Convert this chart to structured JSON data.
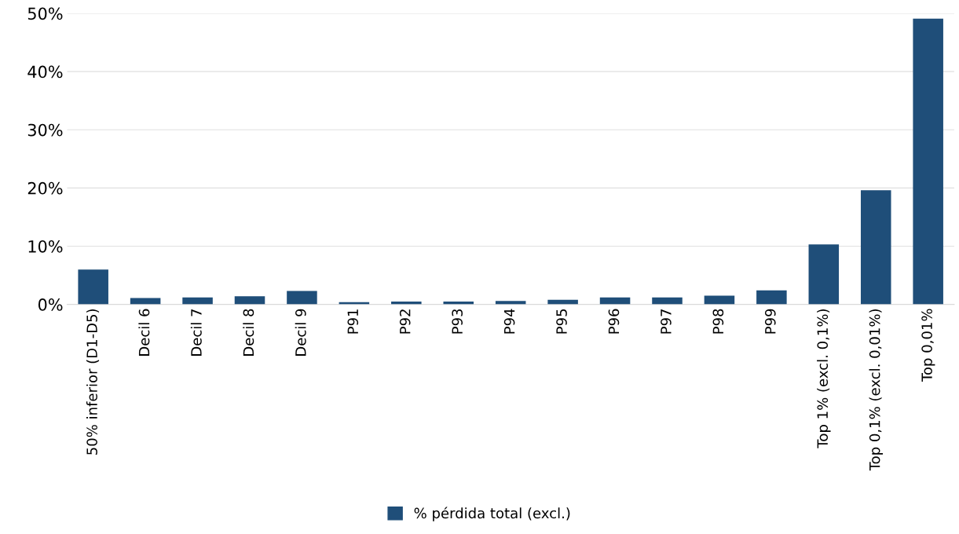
{
  "chart_data": {
    "type": "bar",
    "categories": [
      "50% inferior (D1-D5)",
      "Decil 6",
      "Decil 7",
      "Decil 8",
      "Decil 9",
      "P91",
      "P92",
      "P93",
      "P94",
      "P95",
      "P96",
      "P97",
      "P98",
      "P99",
      "Top 1% (excl. 0,1%)",
      "Top 0,1% (excl. 0,01%)",
      "Top 0,01%"
    ],
    "series": [
      {
        "name": "% pérdida total (excl.)",
        "color": "#1f4e79",
        "values": [
          6.0,
          1.1,
          1.2,
          1.4,
          2.3,
          0.4,
          0.5,
          0.5,
          0.6,
          0.8,
          1.2,
          1.2,
          1.5,
          2.4,
          10.3,
          19.6,
          49.1
        ]
      }
    ],
    "ylim": [
      0,
      50
    ],
    "yticks": [
      {
        "value": 0,
        "label": "0%"
      },
      {
        "value": 10,
        "label": "10%"
      },
      {
        "value": 20,
        "label": "20%"
      },
      {
        "value": 30,
        "label": "30%"
      },
      {
        "value": 40,
        "label": "40%"
      },
      {
        "value": 50,
        "label": "50%"
      }
    ],
    "grid": "y",
    "legend": "bottom"
  }
}
